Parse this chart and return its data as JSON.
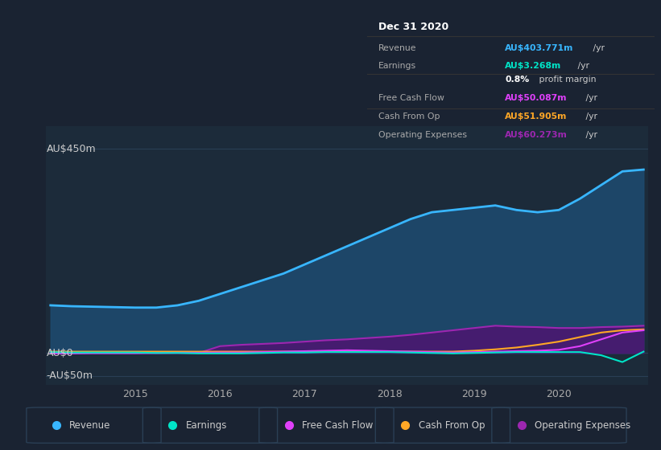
{
  "bg_color": "#1a2332",
  "plot_bg_color": "#1c2b3a",
  "grid_color": "#2a3f55",
  "x_years": [
    2014.0,
    2014.25,
    2014.5,
    2014.75,
    2015.0,
    2015.25,
    2015.5,
    2015.75,
    2016.0,
    2016.25,
    2016.5,
    2016.75,
    2017.0,
    2017.25,
    2017.5,
    2017.75,
    2018.0,
    2018.25,
    2018.5,
    2018.75,
    2019.0,
    2019.25,
    2019.5,
    2019.75,
    2020.0,
    2020.25,
    2020.5,
    2020.75,
    2021.0
  ],
  "revenue": [
    105,
    103,
    102,
    101,
    100,
    100,
    105,
    115,
    130,
    145,
    160,
    175,
    195,
    215,
    235,
    255,
    275,
    295,
    310,
    315,
    320,
    325,
    315,
    310,
    315,
    340,
    370,
    400,
    404
  ],
  "earnings": [
    2,
    1,
    1,
    1,
    1,
    0,
    0,
    -1,
    -1,
    -1,
    0,
    1,
    1,
    2,
    2,
    2,
    2,
    1,
    0,
    -1,
    0,
    1,
    2,
    2,
    2,
    2,
    -5,
    -20,
    3
  ],
  "free_cash_flow": [
    -1,
    -1,
    -0.5,
    -0.5,
    -0.5,
    0,
    0.5,
    0.5,
    1,
    1,
    2,
    3,
    4,
    5,
    6,
    5,
    4,
    3,
    2,
    1,
    2,
    3,
    4,
    5,
    7,
    15,
    30,
    45,
    50
  ],
  "cash_from_op": [
    3,
    3,
    3,
    3,
    3,
    3,
    3,
    3,
    3,
    3,
    3,
    3,
    3,
    3,
    3,
    3,
    3,
    3,
    3,
    3,
    5,
    8,
    12,
    18,
    25,
    35,
    45,
    50,
    52
  ],
  "operating_expenses": [
    0,
    0,
    0,
    0,
    0,
    0,
    0,
    0,
    15,
    18,
    20,
    22,
    25,
    28,
    30,
    33,
    36,
    40,
    45,
    50,
    55,
    60,
    58,
    57,
    55,
    55,
    57,
    58,
    60
  ],
  "ylim": [
    -70,
    500
  ],
  "yticks": [
    -50,
    0,
    450
  ],
  "ytick_labels": [
    "-AU$50m",
    "AU$0",
    "AU$450m"
  ],
  "xticks": [
    2015,
    2016,
    2017,
    2018,
    2019,
    2020
  ],
  "revenue_color": "#38b6ff",
  "revenue_fill": "#1e4a6e",
  "earnings_color": "#00e5c8",
  "fcf_color": "#e040fb",
  "cfop_color": "#ffa726",
  "opex_color": "#9c27b0",
  "opex_fill": "#4a1870",
  "legend_items": [
    {
      "label": "Revenue",
      "color": "#38b6ff"
    },
    {
      "label": "Earnings",
      "color": "#00e5c8"
    },
    {
      "label": "Free Cash Flow",
      "color": "#e040fb"
    },
    {
      "label": "Cash From Op",
      "color": "#ffa726"
    },
    {
      "label": "Operating Expenses",
      "color": "#9c27b0"
    }
  ],
  "infobox": {
    "date": "Dec 31 2020",
    "rows": [
      {
        "label": "Revenue",
        "value": "AU$403.771m",
        "unit": " /yr",
        "value_color": "#38b6ff"
      },
      {
        "label": "Earnings",
        "value": "AU$3.268m",
        "unit": " /yr",
        "value_color": "#00e5c8"
      },
      {
        "label": "",
        "value": "0.8%",
        "unit": " profit margin",
        "value_color": "#ffffff"
      },
      {
        "label": "Free Cash Flow",
        "value": "AU$50.087m",
        "unit": " /yr",
        "value_color": "#e040fb"
      },
      {
        "label": "Cash From Op",
        "value": "AU$51.905m",
        "unit": " /yr",
        "value_color": "#ffa726"
      },
      {
        "label": "Operating Expenses",
        "value": "AU$60.273m",
        "unit": " /yr",
        "value_color": "#9c27b0"
      }
    ]
  }
}
